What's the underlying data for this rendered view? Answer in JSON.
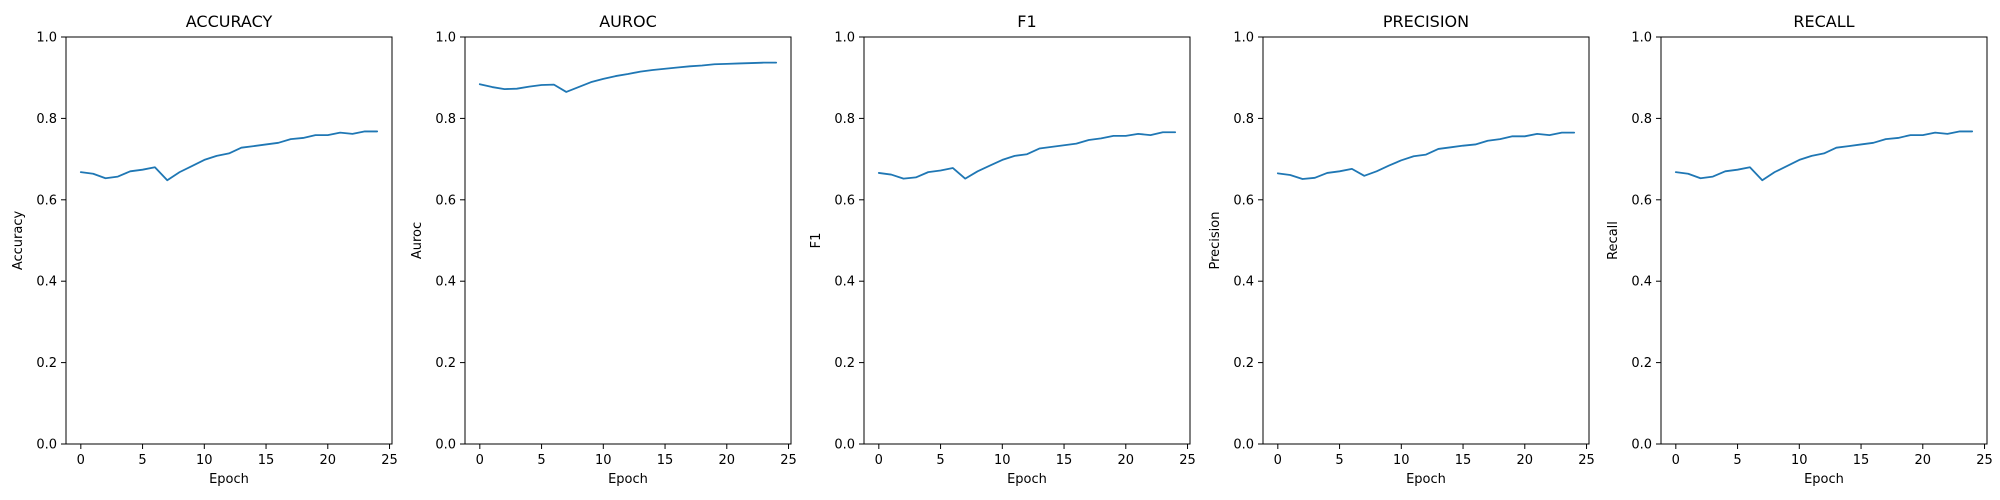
{
  "chart_data": [
    {
      "type": "line",
      "title": "ACCURACY",
      "xlabel": "Epoch",
      "ylabel": "Accuracy",
      "xlim": [
        -1.2,
        25.2
      ],
      "ylim": [
        0,
        1
      ],
      "xticks": [
        0,
        5,
        10,
        15,
        20,
        25
      ],
      "yticks": [
        0.0,
        0.2,
        0.4,
        0.6,
        0.8,
        1.0
      ],
      "grid": false,
      "color": "#1f77b4",
      "x": [
        0,
        1,
        2,
        3,
        4,
        5,
        6,
        7,
        8,
        9,
        10,
        11,
        12,
        13,
        14,
        15,
        16,
        17,
        18,
        19,
        20,
        21,
        22,
        23,
        24
      ],
      "values": [
        0.668,
        0.664,
        0.653,
        0.657,
        0.67,
        0.674,
        0.68,
        0.648,
        0.668,
        0.683,
        0.698,
        0.708,
        0.714,
        0.728,
        0.732,
        0.736,
        0.74,
        0.749,
        0.752,
        0.759,
        0.759,
        0.765,
        0.762,
        0.768,
        0.768
      ]
    },
    {
      "type": "line",
      "title": "AUROC",
      "xlabel": "Epoch",
      "ylabel": "Auroc",
      "xlim": [
        -1.2,
        25.2
      ],
      "ylim": [
        0,
        1
      ],
      "xticks": [
        0,
        5,
        10,
        15,
        20,
        25
      ],
      "yticks": [
        0.0,
        0.2,
        0.4,
        0.6,
        0.8,
        1.0
      ],
      "grid": false,
      "color": "#1f77b4",
      "x": [
        0,
        1,
        2,
        3,
        4,
        5,
        6,
        7,
        8,
        9,
        10,
        11,
        12,
        13,
        14,
        15,
        16,
        17,
        18,
        19,
        20,
        21,
        22,
        23,
        24
      ],
      "values": [
        0.884,
        0.877,
        0.872,
        0.873,
        0.878,
        0.882,
        0.883,
        0.865,
        0.877,
        0.889,
        0.897,
        0.904,
        0.909,
        0.915,
        0.919,
        0.922,
        0.925,
        0.928,
        0.93,
        0.933,
        0.934,
        0.935,
        0.936,
        0.937,
        0.937
      ]
    },
    {
      "type": "line",
      "title": "F1",
      "xlabel": "Epoch",
      "ylabel": "F1",
      "xlim": [
        -1.2,
        25.2
      ],
      "ylim": [
        0,
        1
      ],
      "xticks": [
        0,
        5,
        10,
        15,
        20,
        25
      ],
      "yticks": [
        0.0,
        0.2,
        0.4,
        0.6,
        0.8,
        1.0
      ],
      "grid": false,
      "color": "#1f77b4",
      "x": [
        0,
        1,
        2,
        3,
        4,
        5,
        6,
        7,
        8,
        9,
        10,
        11,
        12,
        13,
        14,
        15,
        16,
        17,
        18,
        19,
        20,
        21,
        22,
        23,
        24
      ],
      "values": [
        0.666,
        0.662,
        0.652,
        0.655,
        0.668,
        0.672,
        0.678,
        0.652,
        0.67,
        0.684,
        0.698,
        0.708,
        0.712,
        0.726,
        0.73,
        0.734,
        0.738,
        0.747,
        0.751,
        0.757,
        0.757,
        0.762,
        0.759,
        0.766,
        0.766
      ]
    },
    {
      "type": "line",
      "title": "PRECISION",
      "xlabel": "Epoch",
      "ylabel": "Precision",
      "xlim": [
        -1.2,
        25.2
      ],
      "ylim": [
        0,
        1
      ],
      "xticks": [
        0,
        5,
        10,
        15,
        20,
        25
      ],
      "yticks": [
        0.0,
        0.2,
        0.4,
        0.6,
        0.8,
        1.0
      ],
      "grid": false,
      "color": "#1f77b4",
      "x": [
        0,
        1,
        2,
        3,
        4,
        5,
        6,
        7,
        8,
        9,
        10,
        11,
        12,
        13,
        14,
        15,
        16,
        17,
        18,
        19,
        20,
        21,
        22,
        23,
        24
      ],
      "values": [
        0.665,
        0.661,
        0.651,
        0.654,
        0.666,
        0.67,
        0.676,
        0.659,
        0.67,
        0.684,
        0.697,
        0.707,
        0.711,
        0.725,
        0.729,
        0.733,
        0.736,
        0.745,
        0.749,
        0.756,
        0.756,
        0.762,
        0.759,
        0.765,
        0.765
      ]
    },
    {
      "type": "line",
      "title": "RECALL",
      "xlabel": "Epoch",
      "ylabel": "Recall",
      "xlim": [
        -1.2,
        25.2
      ],
      "ylim": [
        0,
        1
      ],
      "xticks": [
        0,
        5,
        10,
        15,
        20,
        25
      ],
      "yticks": [
        0.0,
        0.2,
        0.4,
        0.6,
        0.8,
        1.0
      ],
      "grid": false,
      "color": "#1f77b4",
      "x": [
        0,
        1,
        2,
        3,
        4,
        5,
        6,
        7,
        8,
        9,
        10,
        11,
        12,
        13,
        14,
        15,
        16,
        17,
        18,
        19,
        20,
        21,
        22,
        23,
        24
      ],
      "values": [
        0.668,
        0.664,
        0.653,
        0.657,
        0.67,
        0.674,
        0.68,
        0.648,
        0.668,
        0.683,
        0.698,
        0.708,
        0.714,
        0.728,
        0.732,
        0.736,
        0.74,
        0.749,
        0.752,
        0.759,
        0.759,
        0.765,
        0.762,
        0.768,
        0.768
      ]
    }
  ]
}
